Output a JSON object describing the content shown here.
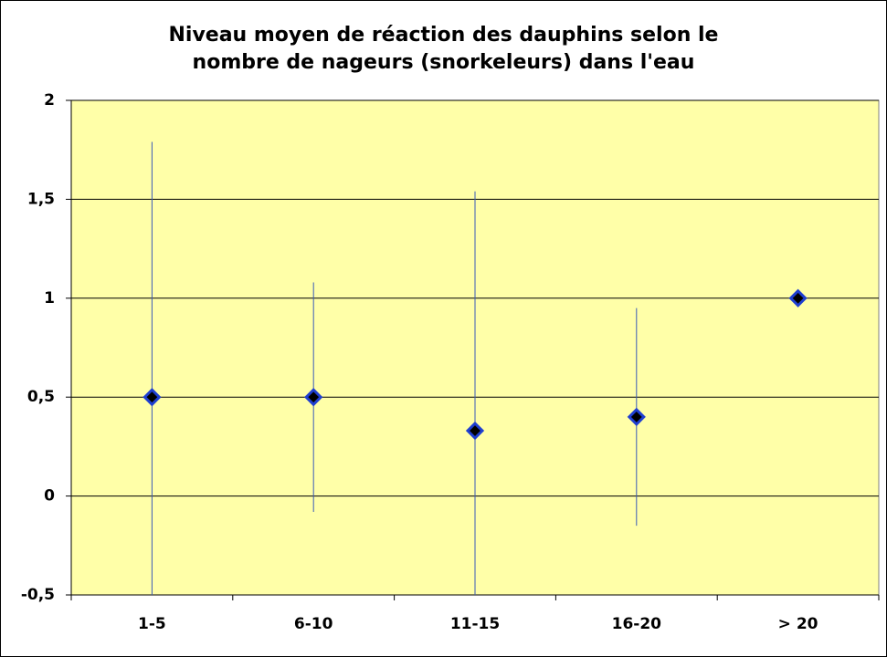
{
  "chart_data": {
    "type": "errorbar",
    "title": "Niveau moyen de réaction des dauphins selon le\nnombre de nageurs (snorkeleurs) dans l'eau",
    "categories": [
      "1-5",
      "6-10",
      "11-15",
      "16-20",
      "> 20"
    ],
    "values": [
      0.5,
      0.5,
      0.33,
      0.4,
      1
    ],
    "errors": [
      1.29,
      0.58,
      1.21,
      0.55,
      0
    ],
    "color": "#1f3fd0",
    "error_color": "#3a5ab8",
    "plot_background": "#ffffa8",
    "ylim": [
      -0.5,
      2
    ],
    "yticks": [
      {
        "value": -0.5,
        "label": "-0,5"
      },
      0,
      {
        "value": 0.5,
        "label": "0,5"
      },
      1,
      {
        "value": 1.5,
        "label": "1,5"
      },
      2
    ],
    "grid": true
  }
}
